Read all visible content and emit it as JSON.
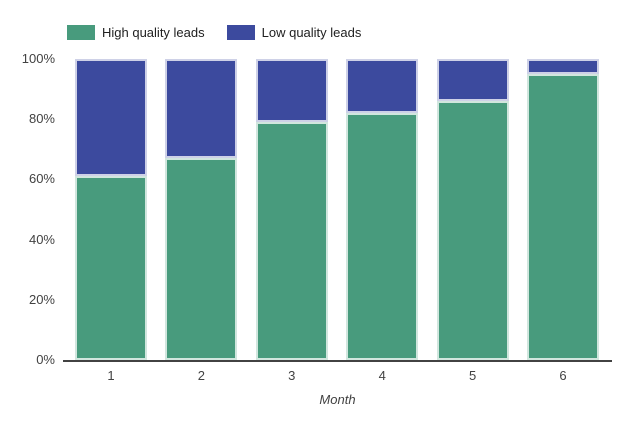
{
  "chart_data": {
    "type": "bar",
    "variant": "stacked-percent",
    "title": "",
    "xlabel": "Month",
    "ylabel": "",
    "categories": [
      "1",
      "2",
      "3",
      "4",
      "5",
      "6"
    ],
    "series": [
      {
        "name": "High quality leads",
        "color": "#489B7D",
        "values": [
          61,
          67,
          79,
          82,
          86,
          95
        ]
      },
      {
        "name": "Low quality leads",
        "color": "#3C4A9E",
        "values": [
          39,
          33,
          21,
          18,
          14,
          5
        ]
      }
    ],
    "y_ticks": [
      "0%",
      "20%",
      "40%",
      "60%",
      "80%",
      "100%"
    ],
    "ylim": [
      0,
      100
    ],
    "legend_position": "top",
    "grid": false,
    "axis_color": "#424242",
    "label_color": "#424242",
    "legend_text_color": "#212121"
  }
}
